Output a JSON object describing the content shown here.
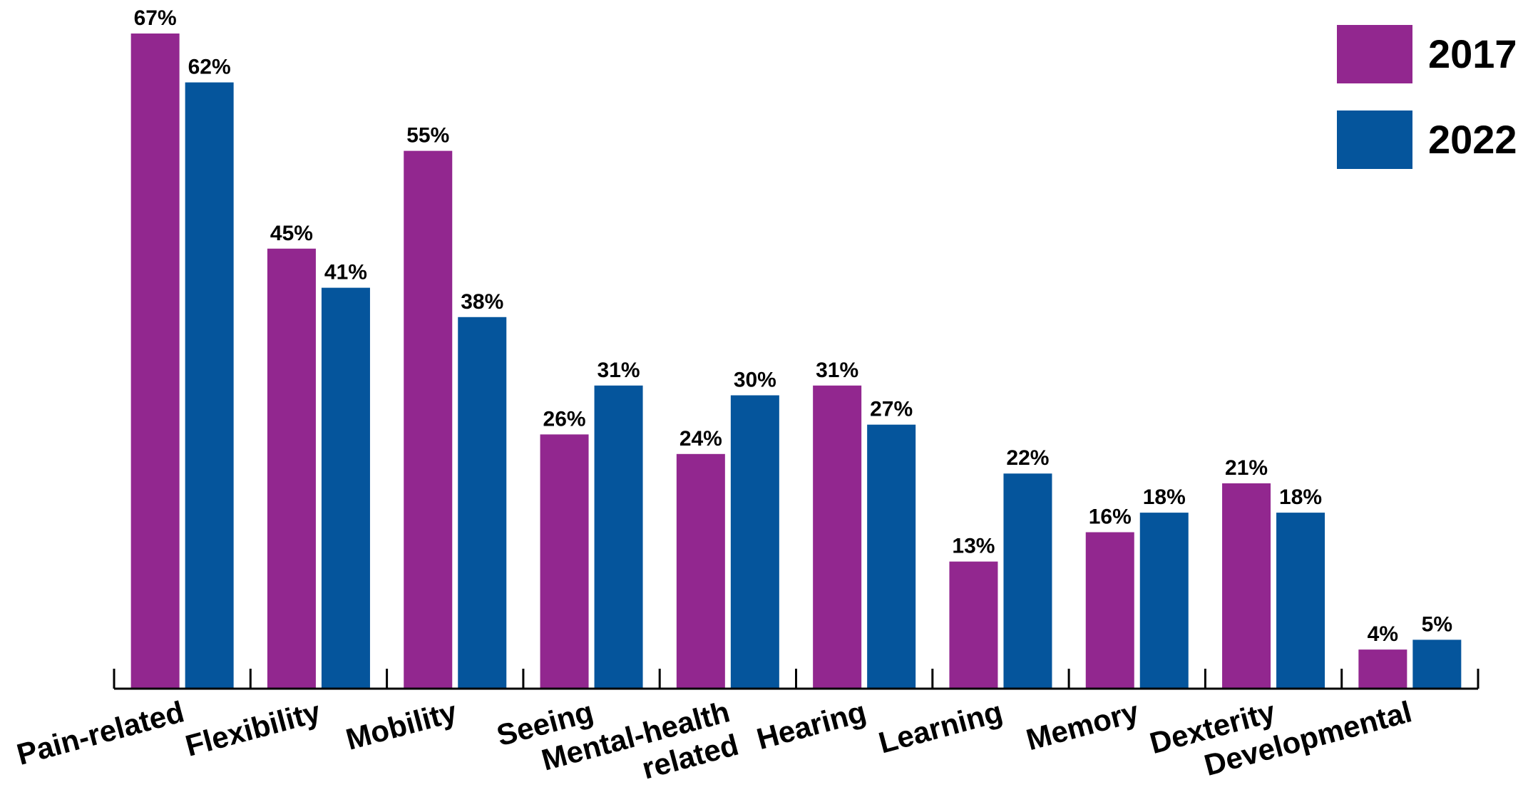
{
  "chart_data": {
    "type": "bar",
    "categories": [
      [
        "Pain-related"
      ],
      [
        "Flexibility"
      ],
      [
        "Mobility"
      ],
      [
        "Seeing"
      ],
      [
        "Mental-health",
        "related"
      ],
      [
        "Hearing"
      ],
      [
        "Learning"
      ],
      [
        "Memory"
      ],
      [
        "Dexterity"
      ],
      [
        "Developmental"
      ]
    ],
    "series": [
      {
        "name": "2017",
        "color": "#92278f",
        "values": [
          67,
          45,
          55,
          26,
          24,
          31,
          13,
          16,
          21,
          4
        ],
        "labels": [
          "67%",
          "45%",
          "55%",
          "26%",
          "24%",
          "31%",
          "13%",
          "16%",
          "21%",
          "4%"
        ]
      },
      {
        "name": "2022",
        "color": "#05559c",
        "values": [
          62,
          41,
          38,
          31,
          30,
          27,
          22,
          18,
          18,
          5
        ],
        "labels": [
          "62%",
          "41%",
          "38%",
          "31%",
          "30%",
          "27%",
          "22%",
          "18%",
          "18%",
          "5%"
        ]
      }
    ],
    "ylim": [
      0,
      67
    ],
    "grid": false,
    "legend": "top-right"
  }
}
